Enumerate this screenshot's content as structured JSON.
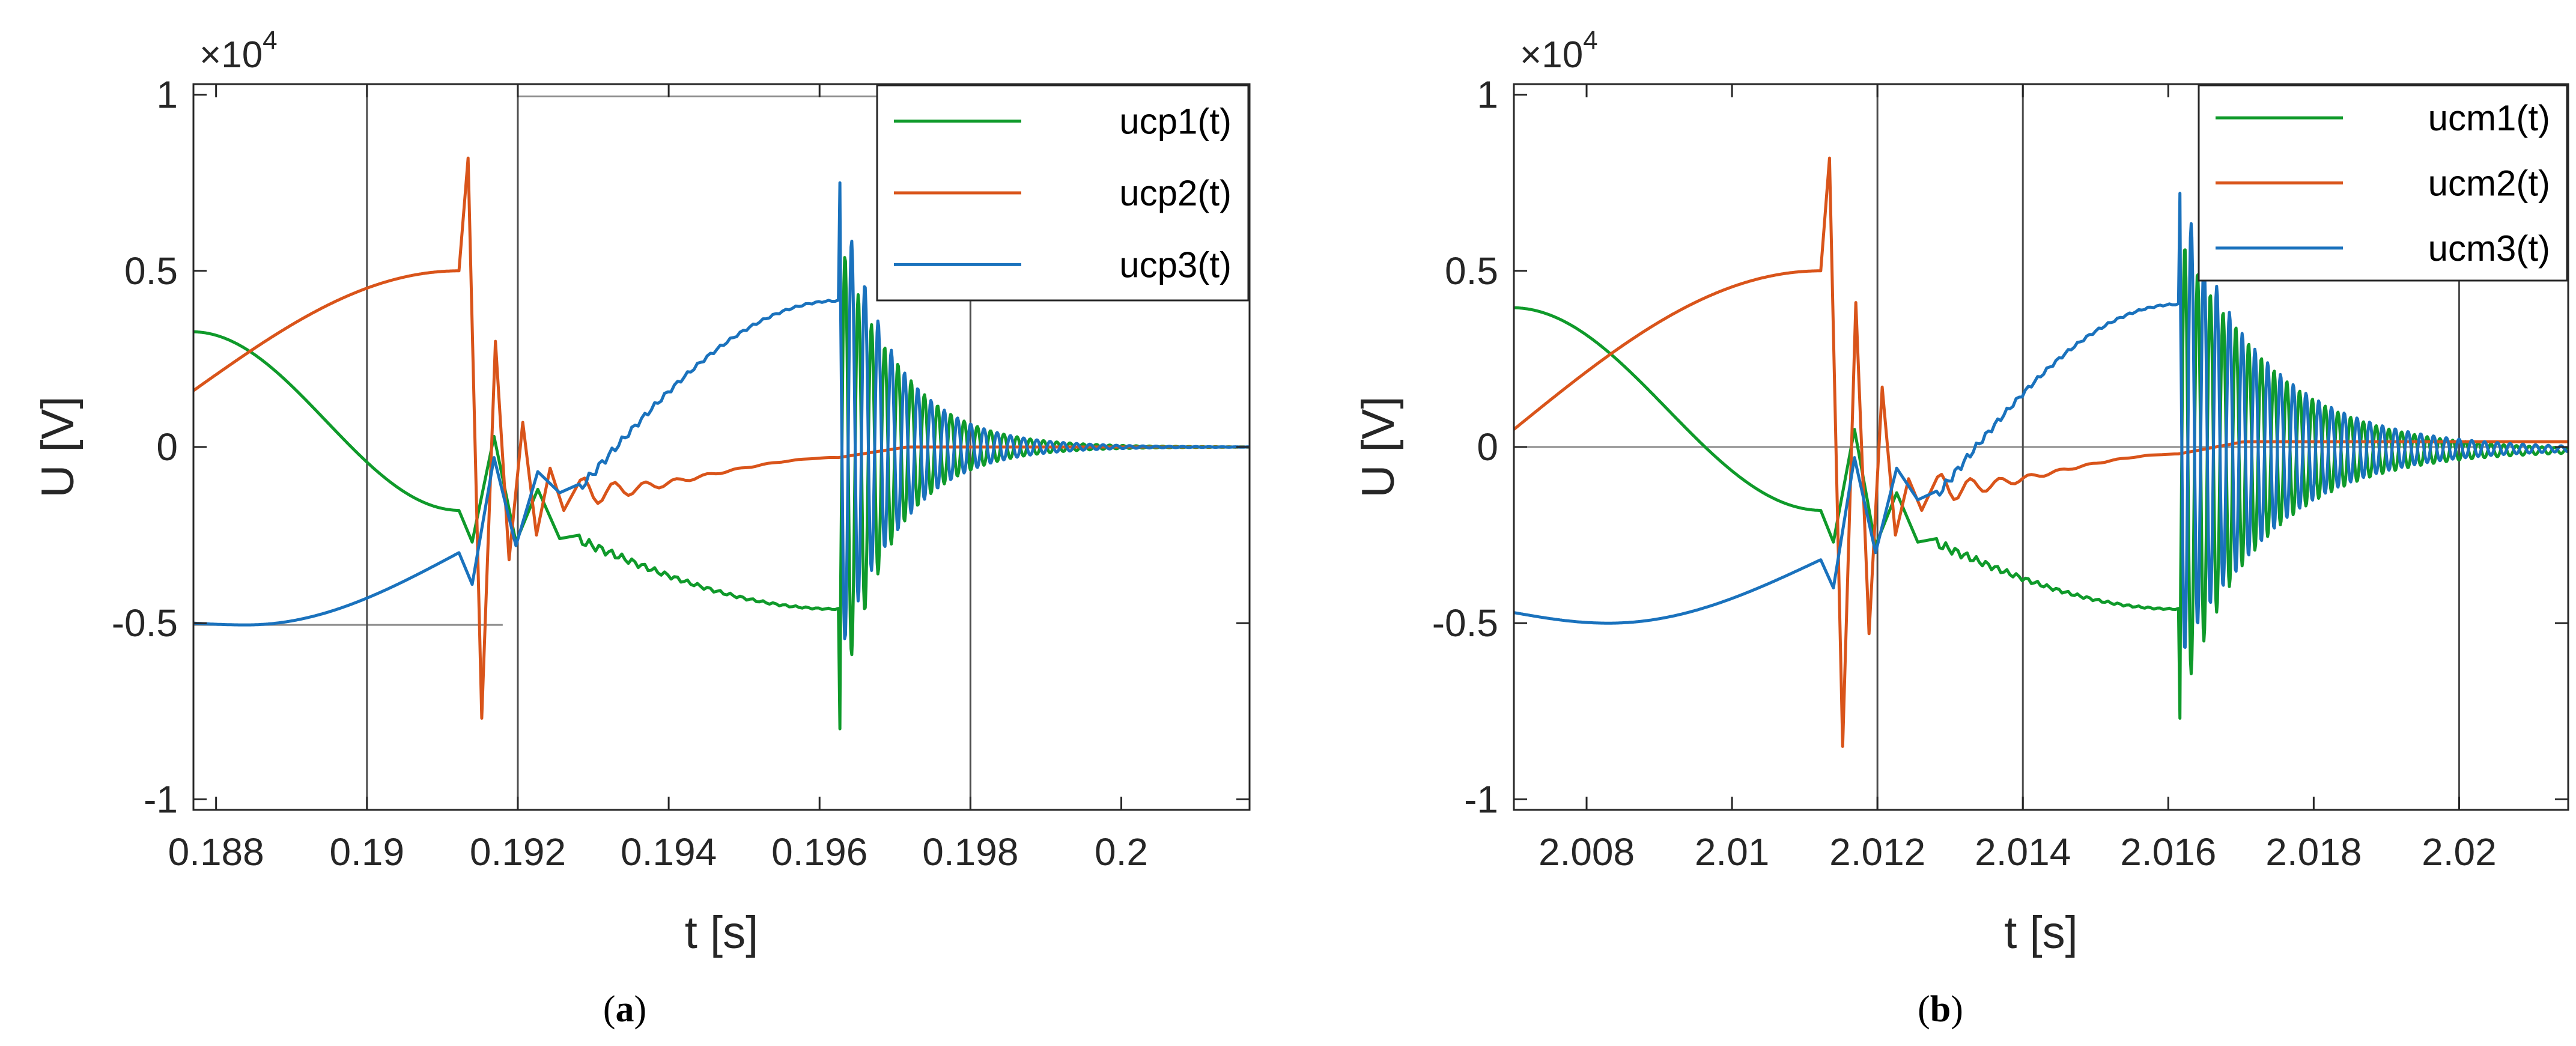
{
  "chart_data": [
    {
      "type": "line",
      "panel": "a",
      "caption": {
        "open": "(",
        "letter": "a",
        "close": ")"
      },
      "xlabel": "t [s]",
      "ylabel": "U [V]",
      "y_exponent": {
        "prefix": "×10",
        "power": "4"
      },
      "xlim": [
        0.1877,
        0.2017
      ],
      "ylim": [
        -10300,
        10300
      ],
      "xticks": [
        0.188,
        0.19,
        0.192,
        0.194,
        0.196,
        0.198,
        0.2
      ],
      "xtick_labels": [
        "0.188",
        "0.19",
        "0.192",
        "0.194",
        "0.196",
        "0.198",
        "0.2"
      ],
      "yticks": [
        -10000,
        -5000,
        0,
        5000,
        10000
      ],
      "ytick_labels": [
        "-1",
        "-0.5",
        "0",
        "0.5",
        "1"
      ],
      "grid": false,
      "cursor_lines_x": [
        0.19,
        0.192,
        0.198
      ],
      "reference_lines": [
        {
          "x": [
            0.192,
            0.2017
          ],
          "y": [
            9950,
            9950
          ]
        },
        {
          "x": [
            0.1877,
            0.1918
          ],
          "y": [
            -5050,
            -5050
          ]
        }
      ],
      "legend_position": "top-right",
      "series": [
        {
          "name": "ucp1(t)",
          "color": "#0f9a2a",
          "phase": 0
        },
        {
          "name": "ucp2(t)",
          "color": "#d9541a",
          "phase": 1
        },
        {
          "name": "ucp3(t)",
          "color": "#1a72bd",
          "phase": 2
        }
      ],
      "events": {
        "x_start": 0.1877,
        "t1": 0.19122,
        "t2": 0.19625,
        "x_end": 0.2017
      },
      "anchors": {
        "p1": {
          "start": 3400,
          "t1": -1800,
          "plateau": -4600,
          "after_t2": 0
        },
        "p2": {
          "start": 1600,
          "t1": 5000,
          "plateau": -300,
          "after_t2": 0
        },
        "p3": {
          "start": -5000,
          "t1": -3000,
          "plateau": 4150,
          "after_t2": 0
        }
      },
      "trough_p3": {
        "x": 0.1884,
        "y": -5050
      },
      "transient1": {
        "p2": [
          8200,
          -7700,
          3000,
          -3200,
          700,
          -2500,
          -600,
          -1800
        ],
        "p1": [
          -2700,
          300,
          -2700,
          -1200,
          -2600
        ],
        "p3": [
          -3900,
          -300,
          -2800,
          -700,
          -1300
        ],
        "p2_decay": 0.0012,
        "p2_freq": 2450,
        "p2_settle_x": 0.1927,
        "p2_settle_y": -1300
      },
      "transient2": {
        "peak_p3": 7500,
        "peak_p1": 5400,
        "trough_p1": -8000,
        "trough_p3": -5600,
        "freq": 5700,
        "decay": 0.00075
      }
    },
    {
      "type": "line",
      "panel": "b",
      "caption": {
        "open": "(",
        "letter": "b",
        "close": ")"
      },
      "xlabel": "t [s]",
      "ylabel": "U [V]",
      "y_exponent": {
        "prefix": "×10",
        "power": "4"
      },
      "xlim": [
        2.007,
        2.0215
      ],
      "ylim": [
        -10300,
        10300
      ],
      "xticks": [
        2.008,
        2.01,
        2.012,
        2.014,
        2.016,
        2.018,
        2.02
      ],
      "xtick_labels": [
        "2.008",
        "2.01",
        "2.012",
        "2.014",
        "2.016",
        "2.018",
        "2.02"
      ],
      "yticks": [
        -10000,
        -5000,
        0,
        5000,
        10000
      ],
      "ytick_labels": [
        "-1",
        "-0.5",
        "0",
        "0.5",
        "1"
      ],
      "grid": false,
      "cursor_lines_x": [
        2.012,
        2.014,
        2.02
      ],
      "reference_lines": [
        {
          "x": [
            2.007,
            2.0215
          ],
          "y": [
            0,
            0
          ]
        }
      ],
      "legend_position": "top-right",
      "series": [
        {
          "name": "ucm1(t)",
          "color": "#0f9a2a",
          "phase": 0
        },
        {
          "name": "ucm2(t)",
          "color": "#d9541a",
          "phase": 1
        },
        {
          "name": "ucm3(t)",
          "color": "#1a72bd",
          "phase": 2
        }
      ],
      "events": {
        "x_start": 2.007,
        "t1": 2.01122,
        "t2": 2.01614,
        "x_end": 2.0215
      },
      "anchors": {
        "p1": {
          "start": 4100,
          "t1": -1800,
          "plateau": -4600,
          "after_t2": -100
        },
        "p2": {
          "start": 500,
          "t1": 5000,
          "plateau": -200,
          "after_t2": 150
        },
        "p3": {
          "start": -4700,
          "t1": -3200,
          "plateau": 4050,
          "after_t2": -50
        }
      },
      "trough_p3": {
        "x": 2.0083,
        "y": -5000
      },
      "transient1": {
        "p2": [
          8200,
          -8500,
          4100,
          -5300,
          1700,
          -2500,
          -900,
          -1800
        ],
        "p1": [
          -2700,
          500,
          -2800,
          -1300,
          -2700
        ],
        "p3": [
          -4000,
          -300,
          -3000,
          -600,
          -1500
        ],
        "p2_decay": 0.0015,
        "p2_freq": 2450,
        "p2_settle_x": 2.0127,
        "p2_settle_y": -1200
      },
      "transient2": {
        "peak_p3": 7200,
        "peak_p1": 5900,
        "trough_p1": -7700,
        "trough_p3": -6200,
        "freq": 5700,
        "decay": 0.0012
      }
    }
  ]
}
